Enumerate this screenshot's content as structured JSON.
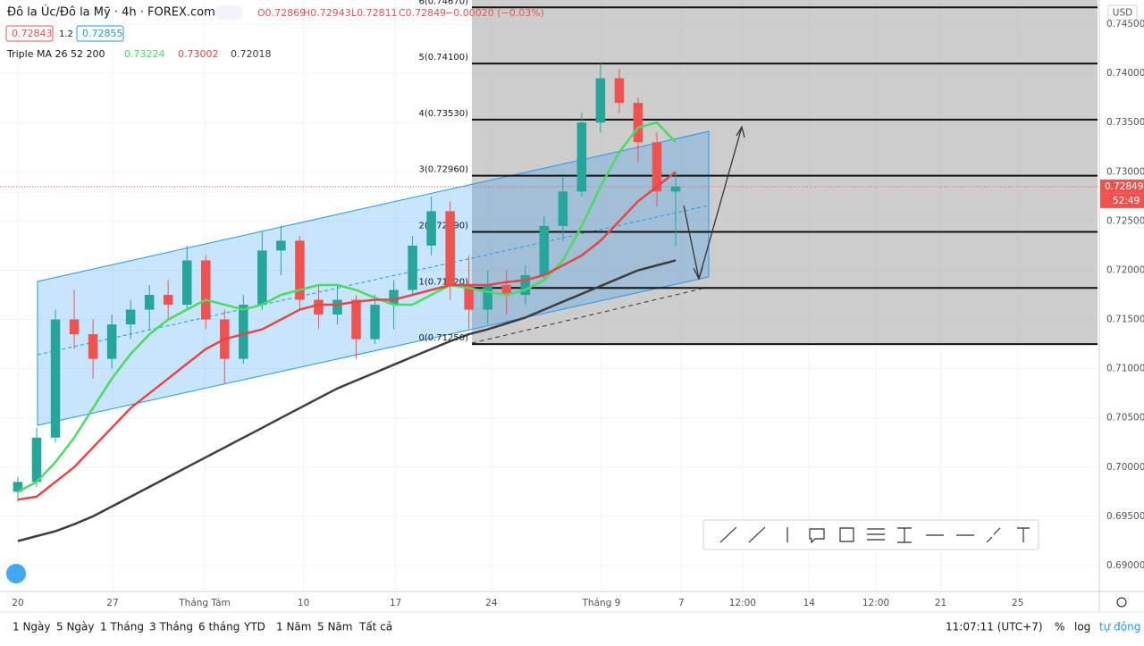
{
  "header": {
    "symbol": "Đô la Úc/Đô la Mỹ · 4h · FOREX.com",
    "ohlc": [
      "O0.72869",
      "H0.72943",
      "L0.72811",
      "C0.72849"
    ],
    "change": "−0.00020 (−0.03%)",
    "bid": "0.72843",
    "spread": "1.2",
    "ask": "0.72855",
    "indicator": "Triple MA 26 52 200",
    "indicator_values": [
      "0.73224",
      "0.73002",
      "0.72018"
    ]
  },
  "chart_data": {
    "type": "candlestick",
    "x": [
      0,
      1,
      2,
      3,
      4,
      5,
      6,
      7,
      8,
      9,
      10,
      11,
      12,
      13,
      14,
      15,
      16,
      17,
      18,
      19,
      20,
      21,
      22,
      23,
      24,
      25,
      26,
      27,
      28,
      29,
      30,
      31,
      32,
      33,
      34,
      35
    ],
    "open": [
      0.6975,
      0.6985,
      0.703,
      0.715,
      0.7135,
      0.711,
      0.7145,
      0.716,
      0.7175,
      0.7165,
      0.721,
      0.715,
      0.711,
      0.7165,
      0.722,
      0.723,
      0.717,
      0.7155,
      0.717,
      0.713,
      0.7165,
      0.718,
      0.7225,
      0.726,
      0.7185,
      0.716,
      0.7185,
      0.7175,
      0.7195,
      0.7245,
      0.728,
      0.735,
      0.7395,
      0.737,
      0.733,
      0.728
    ],
    "high": [
      0.699,
      0.704,
      0.716,
      0.718,
      0.715,
      0.7155,
      0.717,
      0.7185,
      0.719,
      0.7225,
      0.7215,
      0.716,
      0.7175,
      0.724,
      0.7245,
      0.7235,
      0.7185,
      0.7185,
      0.7175,
      0.7175,
      0.719,
      0.7235,
      0.7275,
      0.727,
      0.7215,
      0.72,
      0.72,
      0.7205,
      0.7255,
      0.7295,
      0.736,
      0.741,
      0.7405,
      0.7375,
      0.734,
      0.73
    ],
    "low": [
      0.6965,
      0.698,
      0.7025,
      0.712,
      0.709,
      0.71,
      0.713,
      0.714,
      0.715,
      0.716,
      0.714,
      0.7085,
      0.7105,
      0.716,
      0.7195,
      0.716,
      0.714,
      0.7145,
      0.711,
      0.7125,
      0.714,
      0.7175,
      0.7215,
      0.717,
      0.714,
      0.7145,
      0.7155,
      0.7165,
      0.719,
      0.723,
      0.7275,
      0.734,
      0.736,
      0.731,
      0.7265,
      0.7225
    ],
    "close": [
      0.6985,
      0.703,
      0.715,
      0.7135,
      0.711,
      0.7145,
      0.716,
      0.7175,
      0.7165,
      0.721,
      0.715,
      0.711,
      0.7165,
      0.722,
      0.723,
      0.717,
      0.7155,
      0.717,
      0.713,
      0.7165,
      0.718,
      0.7225,
      0.726,
      0.7185,
      0.716,
      0.7185,
      0.7175,
      0.7195,
      0.7245,
      0.728,
      0.735,
      0.7395,
      0.737,
      0.733,
      0.728,
      0.7285
    ],
    "up_color": "#26a69a",
    "down_color": "#ef5350",
    "series": [
      {
        "color": "#4cd964",
        "values": [
          0.6975,
          0.6985,
          0.7005,
          0.703,
          0.706,
          0.709,
          0.7115,
          0.7135,
          0.715,
          0.716,
          0.717,
          0.7165,
          0.716,
          0.7165,
          0.7175,
          0.718,
          0.7185,
          0.7185,
          0.718,
          0.7172,
          0.7165,
          0.7165,
          0.7175,
          0.7185,
          0.7182,
          0.7178,
          0.7175,
          0.718,
          0.719,
          0.721,
          0.7245,
          0.7285,
          0.732,
          0.7345,
          0.735,
          0.733
        ]
      },
      {
        "color": "#e84545",
        "values": [
          0.6967,
          0.697,
          0.6985,
          0.7,
          0.702,
          0.704,
          0.706,
          0.7075,
          0.709,
          0.7105,
          0.712,
          0.713,
          0.7135,
          0.714,
          0.715,
          0.716,
          0.7165,
          0.7165,
          0.7168,
          0.717,
          0.717,
          0.7175,
          0.718,
          0.7185,
          0.7185,
          0.7185,
          0.7188,
          0.719,
          0.7195,
          0.7205,
          0.7215,
          0.723,
          0.725,
          0.727,
          0.7285,
          0.73
        ]
      },
      {
        "color": "#3d3d3d",
        "values": [
          0.6925,
          0.693,
          0.6935,
          0.6942,
          0.695,
          0.696,
          0.697,
          0.698,
          0.699,
          0.7,
          0.701,
          0.702,
          0.703,
          0.704,
          0.705,
          0.706,
          0.707,
          0.708,
          0.7088,
          0.7096,
          0.7104,
          0.7112,
          0.712,
          0.7128,
          0.7135,
          0.714,
          0.7146,
          0.7152,
          0.716,
          0.7168,
          0.7176,
          0.7184,
          0.7192,
          0.72,
          0.7205,
          0.721
        ]
      }
    ],
    "xlim": [
      -0.95,
      57.54
    ],
    "xticks": [
      {
        "value": 0,
        "label": "20"
      },
      {
        "value": 5.04,
        "label": "27"
      },
      {
        "value": 9.94,
        "label": "Tháng Tám"
      },
      {
        "value": 15.2,
        "label": "10"
      },
      {
        "value": 20.1,
        "label": "17"
      },
      {
        "value": 25.2,
        "label": "24"
      },
      {
        "value": 31.05,
        "label": "Tháng 9"
      },
      {
        "value": 35.3,
        "label": "7"
      },
      {
        "value": 38.56,
        "label": "12:00"
      },
      {
        "value": 42.1,
        "label": "14"
      },
      {
        "value": 45.65,
        "label": "12:00"
      },
      {
        "value": 49.1,
        "label": "21"
      },
      {
        "value": 53.2,
        "label": "25"
      }
    ],
    "ylim": [
      0.68737,
      0.74745
    ],
    "yticks": [
      {
        "value": 0.745,
        "label": "0.74500"
      },
      {
        "value": 0.74,
        "label": "0.74000"
      },
      {
        "value": 0.735,
        "label": "0.73500"
      },
      {
        "value": 0.73,
        "label": "0.73000"
      },
      {
        "value": 0.725,
        "label": "0.72500"
      },
      {
        "value": 0.72,
        "label": "0.72000"
      },
      {
        "value": 0.715,
        "label": "0.71500"
      },
      {
        "value": 0.71,
        "label": "0.71000"
      },
      {
        "value": 0.705,
        "label": "0.70500"
      },
      {
        "value": 0.7,
        "label": "0.70000"
      },
      {
        "value": 0.695,
        "label": "0.69500"
      },
      {
        "value": 0.69,
        "label": "0.69000"
      }
    ],
    "grid": true,
    "currency": "USD",
    "last_price": {
      "value": 0.72849,
      "label": "0.72849"
    },
    "countdown": "52:49",
    "fib_levels": [
      {
        "value": 0.7467,
        "label": "6(0.74670)"
      },
      {
        "value": 0.741,
        "label": "5(0.74100)"
      },
      {
        "value": 0.7353,
        "label": "4(0.73530)"
      },
      {
        "value": 0.7296,
        "label": "3(0.72960)"
      },
      {
        "value": 0.7239,
        "label": "2(0.72390)"
      },
      {
        "value": 0.7182,
        "label": "1(0.71820)"
      },
      {
        "value": 0.7125,
        "label": "0(0.71250)"
      }
    ]
  },
  "footer": {
    "ranges": [
      "1 Ngày",
      "5 Ngày",
      "1 Tháng",
      "3 Tháng",
      "6 tháng",
      "YTD",
      "1 Năm",
      "5 Năm",
      "Tất cả"
    ],
    "time": "11:07:11 (UTC+7)",
    "scale_options": [
      "%",
      "log",
      "tự động"
    ]
  }
}
